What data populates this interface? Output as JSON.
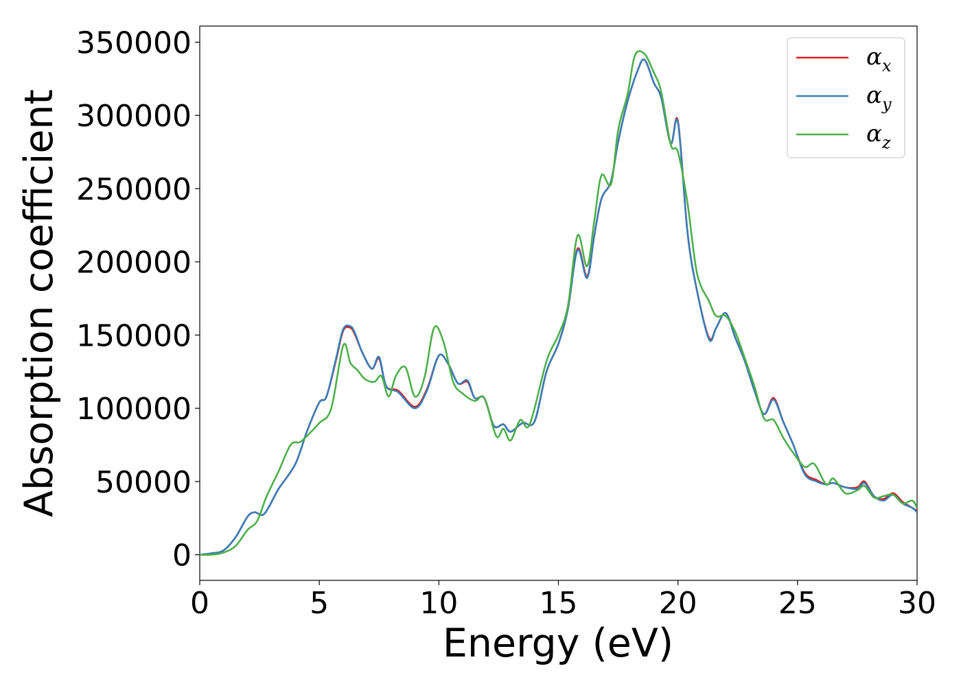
{
  "chart_data": {
    "type": "line",
    "title": "",
    "xlabel": "Energy (eV)",
    "ylabel": "Absorption coefficient",
    "xlim": [
      0,
      30
    ],
    "ylim": [
      -17500,
      361000
    ],
    "xticks": [
      0,
      5,
      10,
      15,
      20,
      25,
      30
    ],
    "xtick_labels": [
      "0",
      "5",
      "10",
      "15",
      "20",
      "25",
      "30"
    ],
    "yticks": [
      0,
      50000,
      100000,
      150000,
      200000,
      250000,
      300000,
      350000
    ],
    "ytick_labels": [
      "0",
      "50000",
      "100000",
      "150000",
      "200000",
      "250000",
      "300000",
      "350000"
    ],
    "grid": false,
    "legend_position": "top-right",
    "series": [
      {
        "name": "α",
        "subscript": "x",
        "color": "#e41a1c",
        "points": [
          [
            0,
            0
          ],
          [
            0.5,
            1000
          ],
          [
            1,
            3000
          ],
          [
            1.5,
            12000
          ],
          [
            2,
            26000
          ],
          [
            2.3,
            29000
          ],
          [
            2.7,
            28000
          ],
          [
            3.3,
            45000
          ],
          [
            4,
            62000
          ],
          [
            4.5,
            85000
          ],
          [
            5,
            104000
          ],
          [
            5.3,
            108000
          ],
          [
            5.7,
            133000
          ],
          [
            6,
            153000
          ],
          [
            6.3,
            155000
          ],
          [
            6.5,
            150000
          ],
          [
            6.8,
            138000
          ],
          [
            7.2,
            127000
          ],
          [
            7.5,
            134000
          ],
          [
            7.8,
            115000
          ],
          [
            8.3,
            112000
          ],
          [
            9,
            101000
          ],
          [
            9.5,
            113000
          ],
          [
            10,
            136000
          ],
          [
            10.4,
            130000
          ],
          [
            10.8,
            117000
          ],
          [
            11.2,
            118000
          ],
          [
            11.5,
            107000
          ],
          [
            11.9,
            107000
          ],
          [
            12.3,
            88000
          ],
          [
            12.7,
            89000
          ],
          [
            13,
            84000
          ],
          [
            13.5,
            90000
          ],
          [
            14,
            91000
          ],
          [
            14.5,
            125000
          ],
          [
            15,
            144000
          ],
          [
            15.4,
            168000
          ],
          [
            15.8,
            209000
          ],
          [
            16.2,
            190000
          ],
          [
            16.5,
            218000
          ],
          [
            16.8,
            243000
          ],
          [
            17.2,
            255000
          ],
          [
            17.5,
            282000
          ],
          [
            17.9,
            310000
          ],
          [
            18.3,
            330000
          ],
          [
            18.6,
            338000
          ],
          [
            19,
            322000
          ],
          [
            19.3,
            312000
          ],
          [
            19.7,
            281000
          ],
          [
            20,
            296000
          ],
          [
            20.4,
            220000
          ],
          [
            20.8,
            180000
          ],
          [
            21.3,
            148000
          ],
          [
            21.6,
            155000
          ],
          [
            22,
            165000
          ],
          [
            22.4,
            148000
          ],
          [
            22.8,
            132000
          ],
          [
            23.2,
            112000
          ],
          [
            23.6,
            96000
          ],
          [
            24,
            107000
          ],
          [
            24.4,
            91000
          ],
          [
            24.8,
            76000
          ],
          [
            25.3,
            56000
          ],
          [
            25.8,
            51000
          ],
          [
            26.2,
            48000
          ],
          [
            26.5,
            49000
          ],
          [
            27,
            46000
          ],
          [
            27.5,
            46000
          ],
          [
            27.8,
            50000
          ],
          [
            28.2,
            40000
          ],
          [
            28.6,
            38000
          ],
          [
            29,
            42000
          ],
          [
            29.4,
            36000
          ],
          [
            29.8,
            32000
          ],
          [
            30,
            30000
          ]
        ]
      },
      {
        "name": "α",
        "subscript": "y",
        "color": "#377eb8",
        "points": [
          [
            0,
            0
          ],
          [
            0.5,
            1000
          ],
          [
            1,
            3000
          ],
          [
            1.5,
            12000
          ],
          [
            2,
            26000
          ],
          [
            2.3,
            29000
          ],
          [
            2.7,
            28000
          ],
          [
            3.3,
            45000
          ],
          [
            4,
            62000
          ],
          [
            4.5,
            85000
          ],
          [
            5,
            104000
          ],
          [
            5.3,
            108000
          ],
          [
            5.7,
            134000
          ],
          [
            6,
            154000
          ],
          [
            6.3,
            156000
          ],
          [
            6.5,
            151000
          ],
          [
            6.8,
            138000
          ],
          [
            7.2,
            127000
          ],
          [
            7.5,
            135000
          ],
          [
            7.8,
            115000
          ],
          [
            8.3,
            111000
          ],
          [
            9,
            100000
          ],
          [
            9.5,
            112000
          ],
          [
            10,
            136000
          ],
          [
            10.4,
            130000
          ],
          [
            10.8,
            117000
          ],
          [
            11.2,
            119000
          ],
          [
            11.5,
            107000
          ],
          [
            11.9,
            107000
          ],
          [
            12.3,
            88000
          ],
          [
            12.7,
            89000
          ],
          [
            13,
            84000
          ],
          [
            13.5,
            90000
          ],
          [
            14,
            91000
          ],
          [
            14.5,
            125000
          ],
          [
            15,
            144000
          ],
          [
            15.4,
            168000
          ],
          [
            15.8,
            208000
          ],
          [
            16.2,
            189000
          ],
          [
            16.5,
            218000
          ],
          [
            16.8,
            243000
          ],
          [
            17.2,
            255000
          ],
          [
            17.5,
            282000
          ],
          [
            17.9,
            310000
          ],
          [
            18.3,
            330000
          ],
          [
            18.6,
            338000
          ],
          [
            19,
            322000
          ],
          [
            19.3,
            312000
          ],
          [
            19.7,
            281000
          ],
          [
            20,
            295000
          ],
          [
            20.4,
            220000
          ],
          [
            20.8,
            180000
          ],
          [
            21.3,
            147000
          ],
          [
            21.6,
            155000
          ],
          [
            22,
            165000
          ],
          [
            22.4,
            148000
          ],
          [
            22.8,
            132000
          ],
          [
            23.2,
            112000
          ],
          [
            23.6,
            96000
          ],
          [
            24,
            106000
          ],
          [
            24.4,
            91000
          ],
          [
            24.8,
            76000
          ],
          [
            25.3,
            55000
          ],
          [
            25.8,
            50000
          ],
          [
            26.2,
            48000
          ],
          [
            26.5,
            49000
          ],
          [
            27,
            46000
          ],
          [
            27.5,
            45000
          ],
          [
            27.8,
            49000
          ],
          [
            28.2,
            40000
          ],
          [
            28.6,
            37000
          ],
          [
            29,
            41000
          ],
          [
            29.4,
            35000
          ],
          [
            29.8,
            32000
          ],
          [
            30,
            29000
          ]
        ]
      },
      {
        "name": "α",
        "subscript": "z",
        "color": "#4daf4a",
        "points": [
          [
            0,
            0
          ],
          [
            0.5,
            0
          ],
          [
            1,
            1500
          ],
          [
            1.5,
            6000
          ],
          [
            2,
            17000
          ],
          [
            2.4,
            23000
          ],
          [
            2.8,
            40000
          ],
          [
            3.3,
            57000
          ],
          [
            3.8,
            75000
          ],
          [
            4.2,
            77000
          ],
          [
            4.6,
            83000
          ],
          [
            5,
            90000
          ],
          [
            5.5,
            100000
          ],
          [
            6,
            143000
          ],
          [
            6.3,
            131000
          ],
          [
            6.6,
            126000
          ],
          [
            6.9,
            120000
          ],
          [
            7.3,
            118000
          ],
          [
            7.6,
            122000
          ],
          [
            7.9,
            108000
          ],
          [
            8.2,
            122000
          ],
          [
            8.6,
            128000
          ],
          [
            9,
            108000
          ],
          [
            9.4,
            121000
          ],
          [
            9.8,
            155000
          ],
          [
            10.2,
            145000
          ],
          [
            10.6,
            118000
          ],
          [
            11,
            110000
          ],
          [
            11.5,
            105000
          ],
          [
            11.9,
            107000
          ],
          [
            12.4,
            81000
          ],
          [
            12.7,
            86000
          ],
          [
            13,
            78000
          ],
          [
            13.4,
            92000
          ],
          [
            13.8,
            89000
          ],
          [
            14.5,
            132000
          ],
          [
            15,
            150000
          ],
          [
            15.4,
            170000
          ],
          [
            15.8,
            218000
          ],
          [
            16.2,
            197000
          ],
          [
            16.5,
            228000
          ],
          [
            16.8,
            259000
          ],
          [
            17.2,
            253000
          ],
          [
            17.5,
            290000
          ],
          [
            17.9,
            315000
          ],
          [
            18.2,
            341000
          ],
          [
            18.6,
            342000
          ],
          [
            19,
            329000
          ],
          [
            19.3,
            316000
          ],
          [
            19.7,
            280000
          ],
          [
            20,
            275000
          ],
          [
            20.4,
            240000
          ],
          [
            20.8,
            192000
          ],
          [
            21.3,
            173000
          ],
          [
            21.6,
            163000
          ],
          [
            22,
            163000
          ],
          [
            22.4,
            152000
          ],
          [
            22.8,
            134000
          ],
          [
            23.2,
            115000
          ],
          [
            23.6,
            93000
          ],
          [
            24,
            92000
          ],
          [
            24.4,
            80000
          ],
          [
            24.8,
            70000
          ],
          [
            25.3,
            60000
          ],
          [
            25.7,
            62000
          ],
          [
            26.2,
            48000
          ],
          [
            26.5,
            52000
          ],
          [
            27,
            42000
          ],
          [
            27.5,
            44000
          ],
          [
            27.8,
            47000
          ],
          [
            28.2,
            39000
          ],
          [
            28.6,
            40000
          ],
          [
            29,
            41000
          ],
          [
            29.4,
            35000
          ],
          [
            29.8,
            37000
          ],
          [
            30,
            32000
          ]
        ]
      }
    ]
  }
}
